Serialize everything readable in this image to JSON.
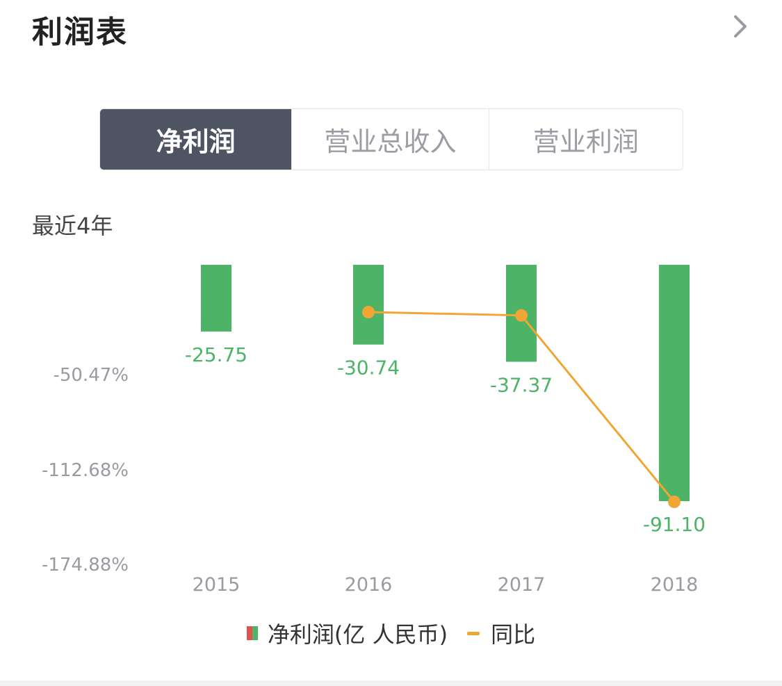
{
  "header": {
    "title": "利润表"
  },
  "tabs": [
    {
      "label": "净利润",
      "active": true
    },
    {
      "label": "营业总收入",
      "active": false
    },
    {
      "label": "营业利润",
      "active": false
    }
  ],
  "period_label": "最近4年",
  "colors": {
    "bar": "#4db367",
    "line": "#f0a635",
    "negative_bar_swatch": "#e0524b",
    "tab_active_bg": "#4f5463"
  },
  "legend": {
    "bar_label": "净利润(亿 人民币)",
    "line_label": "同比"
  },
  "chart_data": {
    "type": "bar",
    "categories": [
      "2015",
      "2016",
      "2017",
      "2018"
    ],
    "series": [
      {
        "name": "净利润(亿 人民币)",
        "values": [
          -25.75,
          -30.74,
          -37.37,
          -91.1
        ],
        "value_labels": [
          "-25.75",
          "-30.74",
          "-37.37",
          "-91.10"
        ]
      },
      {
        "name": "同比",
        "type": "line",
        "values": [
          null,
          -19.38,
          -21.57,
          -143.78
        ]
      }
    ],
    "y_right_ticks": [
      "-50.47%",
      "-112.68%",
      "-174.88%"
    ],
    "y_right_tick_values": [
      -50.47,
      -112.68,
      -174.88
    ],
    "ylim": [
      -91.1,
      0
    ]
  }
}
